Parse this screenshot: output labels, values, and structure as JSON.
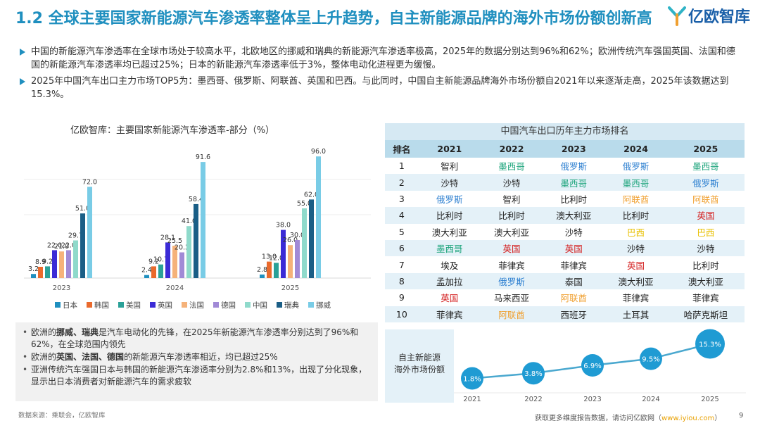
{
  "title": "1.2 全球主要国家新能源汽车渗透率整体呈上升趋势，自主新能源品牌的海外市场份额创新高",
  "logo": {
    "text": "亿欧智库",
    "icon": "iyiou-logo-icon"
  },
  "bullets": [
    "中国的新能源汽车渗透率在全球市场处于较高水平，北欧地区的挪威和瑞典的新能源汽车渗透率极高，2025年的数据分别达到96%和62%；欧洲传统汽车强国英国、法国和德国的新能源汽车渗透率均已超过25%；日本的新能源汽车渗透率低于3%，整体电动化进程更为缓慢。",
    "2025年中国汽车出口主力市场TOP5为：墨西哥、俄罗斯、阿联酋、英国和巴西。与此同时，中国自主新能源品牌海外市场份额自2021年以来逐渐走高，2025年该数据达到15.3%。"
  ],
  "chart_data": [
    {
      "type": "bar",
      "title": "亿欧智库：主要国家新能源汽车渗透率-部分（%）",
      "categories": [
        "2023",
        "2024",
        "2025"
      ],
      "series": [
        {
          "name": "日本",
          "color": "#1f8fbf",
          "values": [
            3.2,
            2.4,
            2.8
          ]
        },
        {
          "name": "韩国",
          "color": "#ea6a2c",
          "values": [
            8.9,
            9.2,
            13.0
          ]
        },
        {
          "name": "美国",
          "color": "#2aa198",
          "values": [
            9.2,
            10.7,
            12.0
          ]
        },
        {
          "name": "英国",
          "color": "#3b2bd6",
          "values": [
            22.0,
            28.1,
            38.0
          ]
        },
        {
          "name": "法国",
          "color": "#f5b27a",
          "values": [
            21.0,
            25.5,
            26.0
          ]
        },
        {
          "name": "德国",
          "color": "#a18ad6",
          "values": [
            22.0,
            20.3,
            30.0
          ]
        },
        {
          "name": "中国",
          "color": "#8fdacb",
          "values": [
            29.7,
            41.0,
            55.0
          ]
        },
        {
          "name": "瑞典",
          "color": "#1a5e86",
          "values": [
            51.0,
            58.4,
            62.0
          ]
        },
        {
          "name": "挪威",
          "color": "#79cce6",
          "values": [
            72.0,
            91.6,
            96.0
          ]
        }
      ],
      "ylim": [
        0,
        100
      ],
      "legend": "bottom"
    },
    {
      "type": "table",
      "title": "中国汽车出口历年主力市场排名",
      "headers": [
        "排名",
        "2021",
        "2022",
        "2023",
        "2024",
        "2025"
      ],
      "rows": [
        [
          {
            "t": "1"
          },
          {
            "t": "智利"
          },
          {
            "t": "墨西哥",
            "c": "green"
          },
          {
            "t": "俄罗斯",
            "c": "blue"
          },
          {
            "t": "俄罗斯",
            "c": "blue"
          },
          {
            "t": "墨西哥",
            "c": "green"
          }
        ],
        [
          {
            "t": "2"
          },
          {
            "t": "沙特"
          },
          {
            "t": "沙特"
          },
          {
            "t": "墨西哥",
            "c": "green"
          },
          {
            "t": "墨西哥",
            "c": "green"
          },
          {
            "t": "俄罗斯",
            "c": "blue"
          }
        ],
        [
          {
            "t": "3"
          },
          {
            "t": "俄罗斯",
            "c": "blue"
          },
          {
            "t": "智利"
          },
          {
            "t": "比利时"
          },
          {
            "t": "阿联酋",
            "c": "orange"
          },
          {
            "t": "阿联酋",
            "c": "orange"
          }
        ],
        [
          {
            "t": "4"
          },
          {
            "t": "比利时"
          },
          {
            "t": "比利时"
          },
          {
            "t": "澳大利亚"
          },
          {
            "t": "比利时"
          },
          {
            "t": "英国",
            "c": "red"
          }
        ],
        [
          {
            "t": "5"
          },
          {
            "t": "澳大利亚"
          },
          {
            "t": "澳大利亚"
          },
          {
            "t": "沙特"
          },
          {
            "t": "巴西",
            "c": "yellow"
          },
          {
            "t": "巴西",
            "c": "yellow"
          }
        ],
        [
          {
            "t": "6"
          },
          {
            "t": "墨西哥",
            "c": "green"
          },
          {
            "t": "英国",
            "c": "red"
          },
          {
            "t": "英国",
            "c": "red"
          },
          {
            "t": "沙特"
          },
          {
            "t": "沙特"
          }
        ],
        [
          {
            "t": "7"
          },
          {
            "t": "埃及"
          },
          {
            "t": "菲律宾"
          },
          {
            "t": "菲律宾"
          },
          {
            "t": "英国",
            "c": "red"
          },
          {
            "t": "比利时"
          }
        ],
        [
          {
            "t": "8"
          },
          {
            "t": "孟加拉"
          },
          {
            "t": "俄罗斯",
            "c": "blue"
          },
          {
            "t": "泰国"
          },
          {
            "t": "澳大利亚"
          },
          {
            "t": "澳大利亚"
          }
        ],
        [
          {
            "t": "9"
          },
          {
            "t": "英国",
            "c": "red"
          },
          {
            "t": "马来西亚"
          },
          {
            "t": "阿联酋",
            "c": "orange"
          },
          {
            "t": "菲律宾"
          },
          {
            "t": "菲律宾"
          }
        ],
        [
          {
            "t": "10"
          },
          {
            "t": "菲律宾"
          },
          {
            "t": "阿联酋",
            "c": "orange"
          },
          {
            "t": "西班牙"
          },
          {
            "t": "土耳其"
          },
          {
            "t": "哈萨克斯坦"
          }
        ]
      ]
    },
    {
      "type": "line",
      "title": "自主新能源 海外市场份额",
      "x": [
        "2021",
        "2022",
        "2023",
        "2024",
        "2025"
      ],
      "values": [
        1.8,
        3.8,
        6.9,
        9.5,
        15.3
      ],
      "labels": [
        "1.8%",
        "3.8%",
        "6.9%",
        "9.5%",
        "15.3%"
      ]
    }
  ],
  "notes": [
    [
      {
        "t": "欧洲的",
        "b": false
      },
      {
        "t": "挪威、瑞典",
        "b": true
      },
      {
        "t": "是汽车电动化的先锋，在2025年新能源汽车渗透率分别达到了96%和62%，在全球范围内领先",
        "b": false
      }
    ],
    [
      {
        "t": "欧洲的",
        "b": false
      },
      {
        "t": "英国、法国、德国",
        "b": true
      },
      {
        "t": "的新能源汽车渗透率相近，均已超过25%",
        "b": false
      }
    ],
    [
      {
        "t": "亚洲传统汽车强国日本与韩国的新能源汽车渗透率分别为2.8%和13%，出现了分化现象，显示出日本消费者对新能源汽车的需求疲软",
        "b": false
      }
    ]
  ],
  "share_label_lines": [
    "自主新能源",
    "海外市场份额"
  ],
  "source": "数据来源：乘联会，亿欧智库",
  "footer": {
    "text": "获取更多维度报告数据，请访问亿欧网（",
    "link": "www.iyiou.com",
    "end": "）"
  },
  "page_number": "9"
}
